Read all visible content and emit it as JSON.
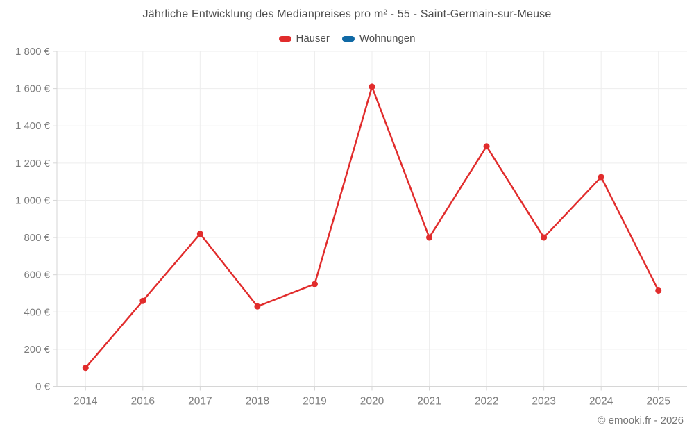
{
  "chart_data": {
    "type": "line",
    "title": "Jährliche Entwicklung des Medianpreises pro m² - 55 - Saint-Germain-sur-Meuse",
    "categories": [
      "2014",
      "2016",
      "2017",
      "2018",
      "2019",
      "2020",
      "2021",
      "2022",
      "2023",
      "2024",
      "2025"
    ],
    "series": [
      {
        "name": "Häuser",
        "color": "#e12c2c",
        "values": [
          100,
          460,
          820,
          430,
          550,
          1610,
          800,
          1290,
          800,
          1125,
          515
        ]
      },
      {
        "name": "Wohnungen",
        "color": "#1069a5",
        "values": []
      }
    ],
    "ylim": [
      0,
      1800
    ],
    "ytick_step": 200,
    "ytick_suffix": " €",
    "grid": true,
    "legend_position": "top",
    "marker_radius": 4.5,
    "line_width": 2.5
  },
  "colors": {
    "grid": "#ededed",
    "axis": "#d6d6d6",
    "tick_label": "#7d7d7d",
    "title": "#4d4d4d"
  },
  "footer": {
    "credit": "© emooki.fr - 2026"
  }
}
